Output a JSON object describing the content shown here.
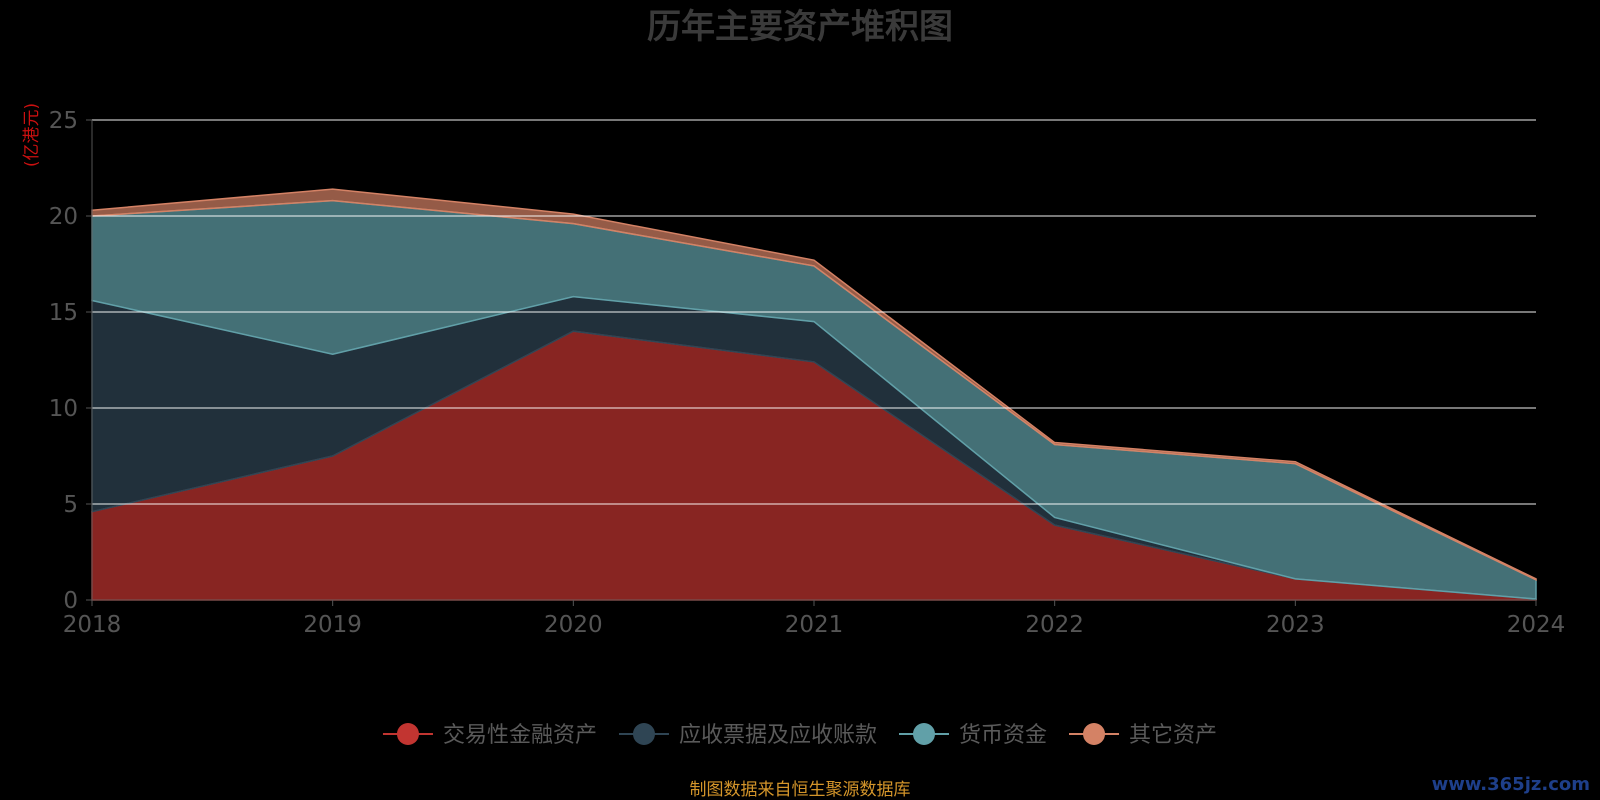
{
  "chart_data": {
    "type": "area",
    "stacked": true,
    "title": "历年主要资产堆积图",
    "unit_label": "(亿港元)",
    "categories": [
      "2018",
      "2019",
      "2020",
      "2021",
      "2022",
      "2023",
      "2024"
    ],
    "ylim": [
      0,
      25
    ],
    "yticks": [
      "0",
      "5",
      "10",
      "15",
      "20",
      "25"
    ],
    "grid": true,
    "legend_position": "bottom",
    "series": [
      {
        "name": "交易性金融资产",
        "color": "#c23531",
        "values": [
          4.6,
          7.5,
          14.0,
          12.4,
          3.9,
          1.1,
          0.05
        ]
      },
      {
        "name": "应收票据及应收账款",
        "color": "#2f4554",
        "values": [
          11.0,
          5.3,
          1.8,
          2.1,
          0.4,
          0.0,
          0.0
        ]
      },
      {
        "name": "货币资金",
        "color": "#61a0a8",
        "values": [
          4.4,
          8.0,
          3.8,
          2.9,
          3.8,
          6.0,
          1.0
        ]
      },
      {
        "name": "其它资产",
        "color": "#d48265",
        "values": [
          0.3,
          0.6,
          0.5,
          0.3,
          0.1,
          0.1,
          0.05
        ]
      }
    ]
  },
  "footer": {
    "source": "制图数据来自恒生聚源数据库",
    "watermark": "www.365jz.com"
  }
}
